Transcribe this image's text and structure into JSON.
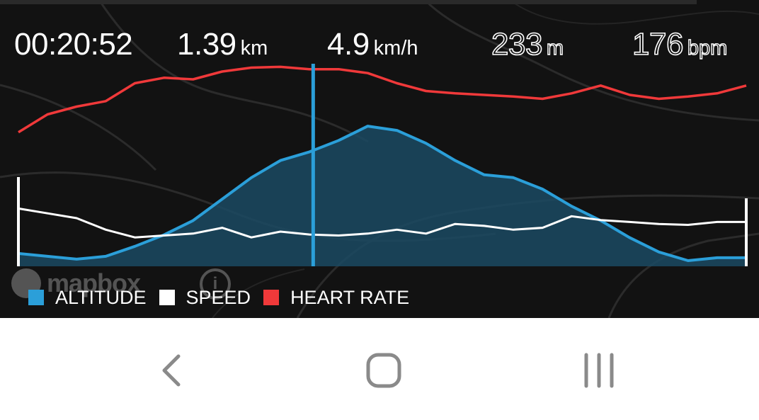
{
  "stats": {
    "time": {
      "value": "00:20:52",
      "unit": ""
    },
    "distance": {
      "value": "1.39",
      "unit": "km"
    },
    "speed": {
      "value": "4.9",
      "unit": "km/h"
    },
    "altitude": {
      "value": "233",
      "unit": "m"
    },
    "heart_rate": {
      "value": "176",
      "unit": "bpm"
    }
  },
  "legend": [
    {
      "label": "ALTITUDE",
      "color": "#2b9fd9"
    },
    {
      "label": "SPEED",
      "color": "#ffffff"
    },
    {
      "label": "HEART RATE",
      "color": "#f0393a"
    }
  ],
  "map_attribution": {
    "brand": "mapbox",
    "info_icon": "info-icon"
  },
  "cursor_position_fraction": 0.405,
  "chart_data": {
    "type": "line",
    "x_range": [
      0,
      1
    ],
    "x": [
      0,
      0.04,
      0.08,
      0.12,
      0.16,
      0.2,
      0.24,
      0.28,
      0.32,
      0.36,
      0.4,
      0.44,
      0.48,
      0.52,
      0.56,
      0.6,
      0.64,
      0.68,
      0.72,
      0.76,
      0.8,
      0.84,
      0.88,
      0.92,
      0.96,
      1.0
    ],
    "series": [
      {
        "name": "ALTITUDE",
        "values": [
          0.07,
          0.05,
          0.03,
          0.05,
          0.12,
          0.2,
          0.3,
          0.45,
          0.6,
          0.72,
          0.78,
          0.86,
          0.96,
          0.93,
          0.84,
          0.72,
          0.62,
          0.6,
          0.52,
          0.4,
          0.3,
          0.18,
          0.08,
          0.02,
          0.04,
          0.04
        ]
      },
      {
        "name": "SPEED",
        "values": [
          0.6,
          0.55,
          0.5,
          0.38,
          0.3,
          0.32,
          0.34,
          0.4,
          0.3,
          0.36,
          0.33,
          0.32,
          0.34,
          0.38,
          0.34,
          0.44,
          0.42,
          0.38,
          0.4,
          0.52,
          0.48,
          0.46,
          0.44,
          0.43,
          0.46,
          0.46
        ]
      },
      {
        "name": "HEART RATE",
        "values": [
          0.12,
          0.35,
          0.45,
          0.52,
          0.75,
          0.82,
          0.8,
          0.9,
          0.95,
          0.96,
          0.93,
          0.93,
          0.88,
          0.75,
          0.65,
          0.62,
          0.6,
          0.58,
          0.55,
          0.62,
          0.72,
          0.6,
          0.55,
          0.58,
          0.62,
          0.72
        ]
      }
    ]
  }
}
